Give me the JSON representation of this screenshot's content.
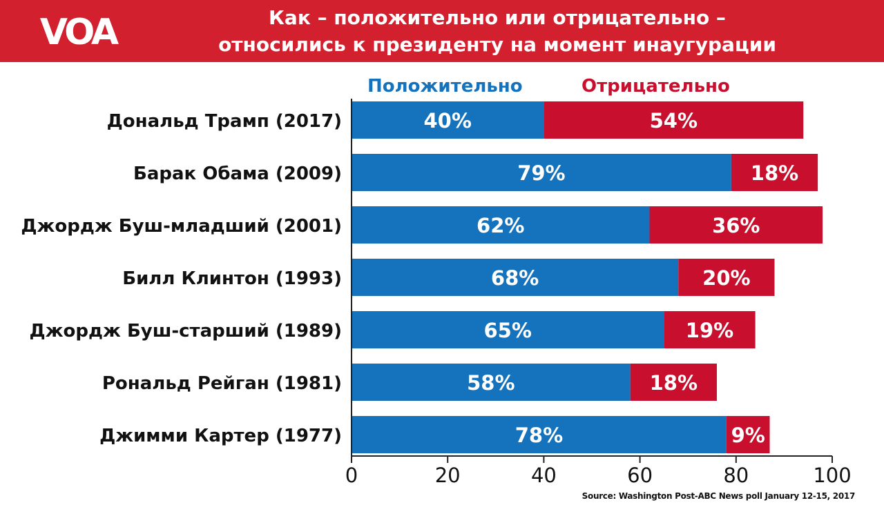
{
  "header": {
    "logo_text": "VOA",
    "title_line1": "Как – положительно или отрицательно –",
    "title_line2": "относились к президенту на момент инаугурации"
  },
  "legend": {
    "positive": "Положительно",
    "negative": "Отрицательно"
  },
  "colors": {
    "header": "#d2202f",
    "positive": "#1572bd",
    "negative": "#c8102e"
  },
  "source": "Source: Washington Post-ABC News poll January 12-15, 2017",
  "chart_data": {
    "type": "bar",
    "orientation": "horizontal",
    "stacked": true,
    "categories": [
      "Дональд Трамп (2017)",
      "Барак Обама (2009)",
      "Джордж Буш-младший (2001)",
      "Билл Клинтон (1993)",
      "Джордж Буш-старший (1989)",
      "Рональд Рейган (1981)",
      "Джимми Картер (1977)"
    ],
    "series": [
      {
        "name": "Положительно",
        "values": [
          40,
          79,
          62,
          68,
          65,
          58,
          78
        ],
        "labels": [
          "40%",
          "79%",
          "62%",
          "68%",
          "65%",
          "58%",
          "78%"
        ]
      },
      {
        "name": "Отрицательно",
        "values": [
          54,
          18,
          36,
          20,
          19,
          18,
          9
        ],
        "labels": [
          "54%",
          "18%",
          "36%",
          "20%",
          "19%",
          "18%",
          "9%"
        ]
      }
    ],
    "xlim": [
      0,
      100
    ],
    "xticks": [
      0,
      20,
      40,
      60,
      80,
      100
    ],
    "xtick_labels": [
      "0",
      "20",
      "40",
      "60",
      "80",
      "100"
    ],
    "grid": false,
    "legend_position": "top"
  }
}
